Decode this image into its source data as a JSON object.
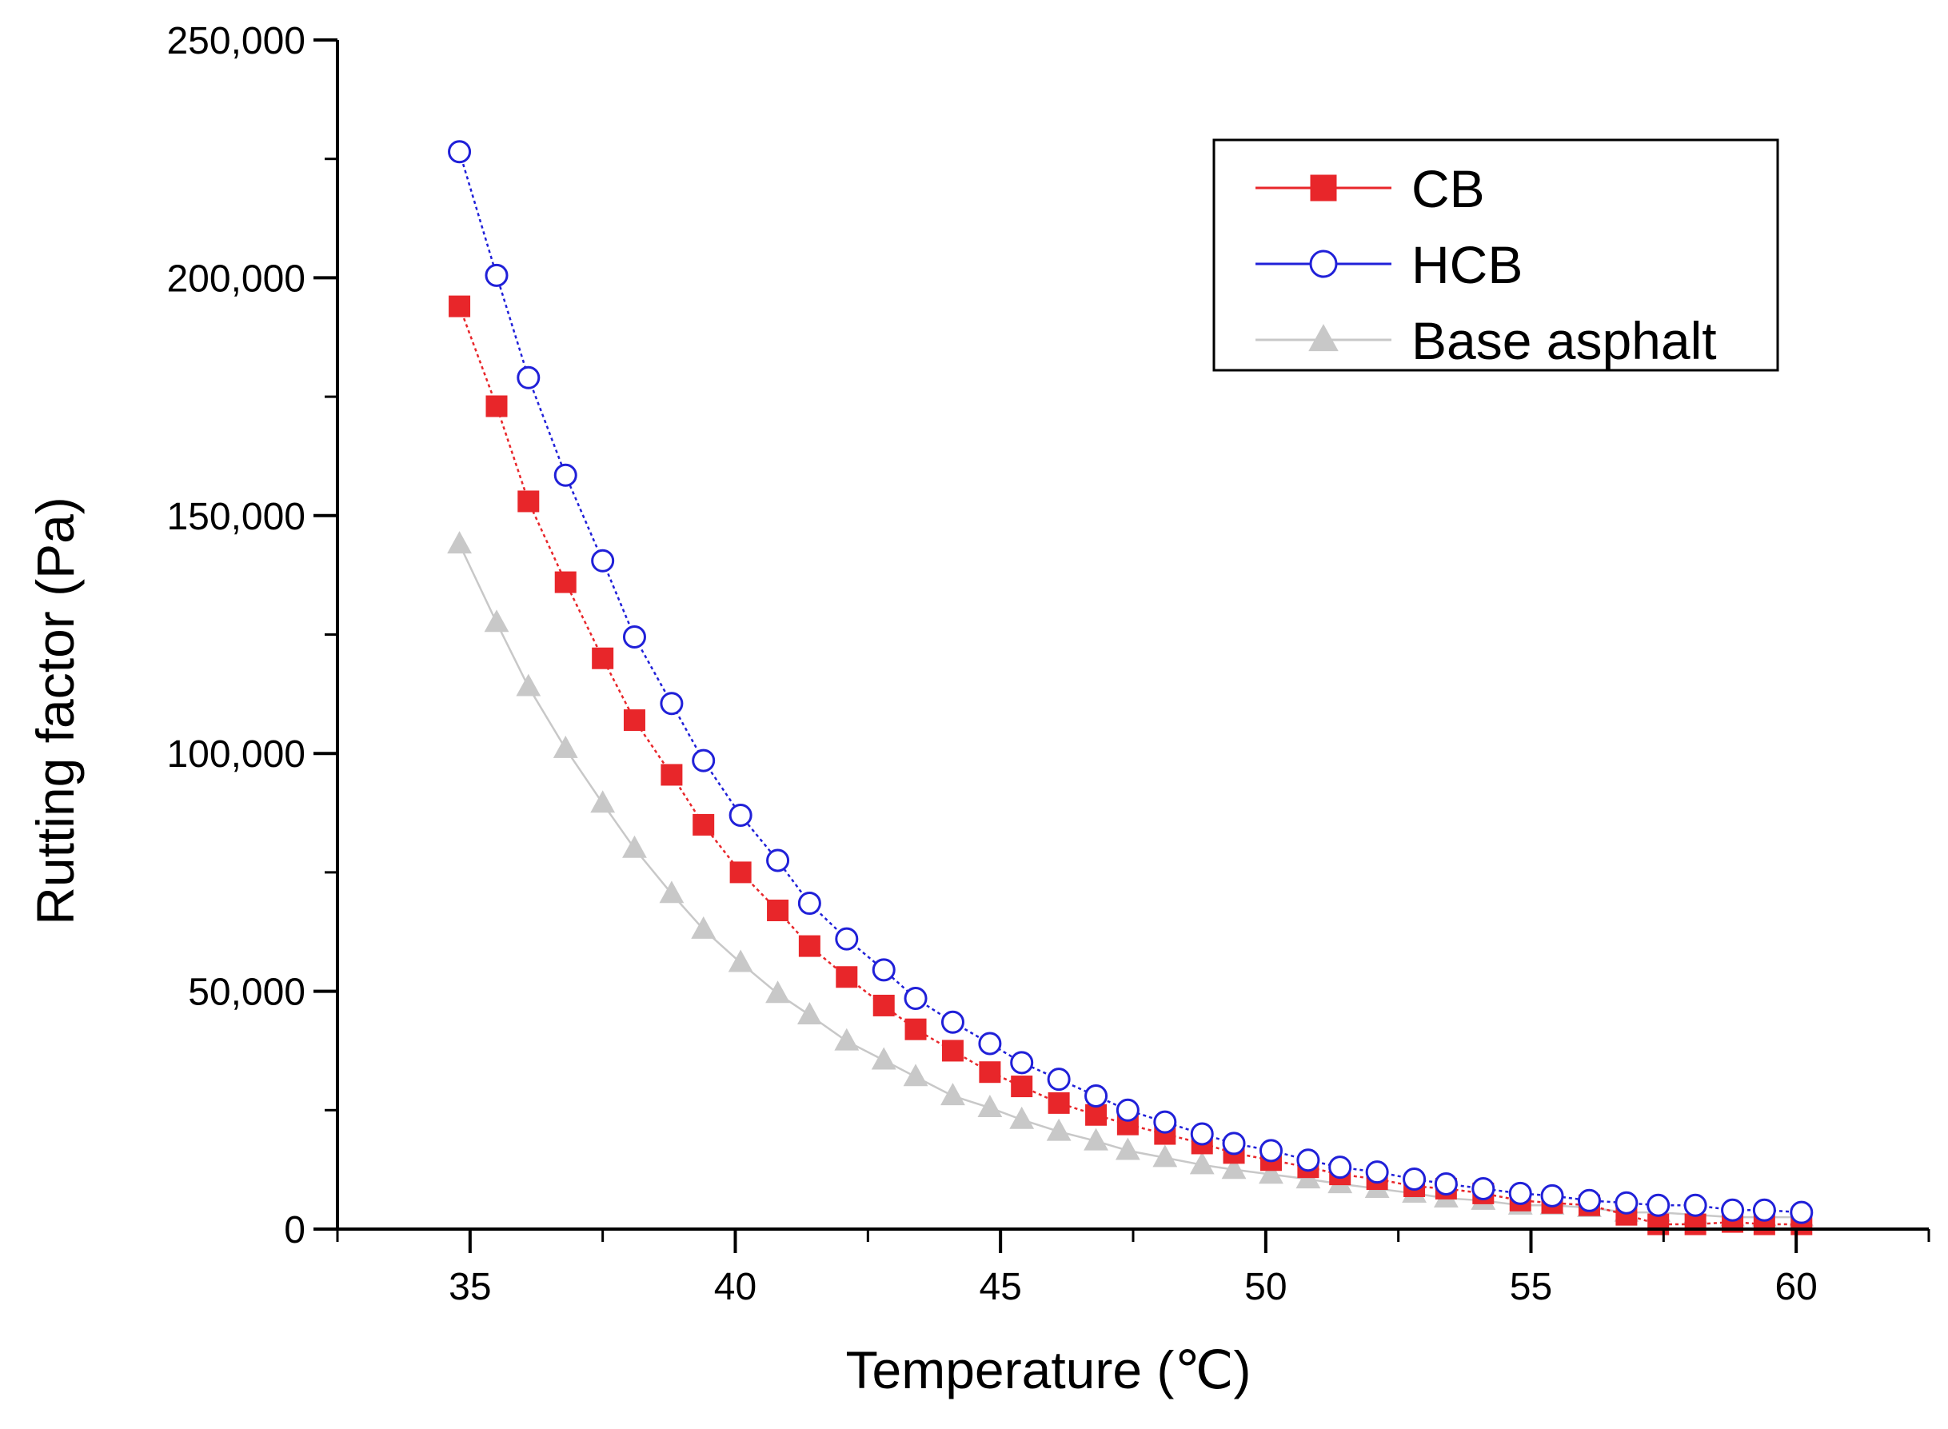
{
  "chart_data": {
    "type": "line",
    "title": "",
    "xlabel": "Temperature (℃)",
    "ylabel": "Rutting factor (Pa)",
    "xlim": [
      32.5,
      62.5
    ],
    "ylim": [
      0,
      250000
    ],
    "x_ticks": [
      35,
      40,
      45,
      50,
      55,
      60
    ],
    "x_tick_labels": [
      "35",
      "40",
      "45",
      "50",
      "55",
      "60"
    ],
    "y_ticks": [
      0,
      50000,
      100000,
      150000,
      200000,
      250000
    ],
    "y_tick_labels": [
      "0",
      "50,000",
      "100,000",
      "150,000",
      "200,000",
      "250,000"
    ],
    "grid": false,
    "legend_position": "top-right",
    "x": [
      34.8,
      35.5,
      36.1,
      36.8,
      37.5,
      38.1,
      38.8,
      39.4,
      40.1,
      40.8,
      41.4,
      42.1,
      42.8,
      43.4,
      44.1,
      44.8,
      45.4,
      46.1,
      46.8,
      47.4,
      48.1,
      48.8,
      49.4,
      50.1,
      50.8,
      51.4,
      52.1,
      52.8,
      53.4,
      54.1,
      54.8,
      55.4,
      56.1,
      56.8,
      57.4,
      58.1,
      58.8,
      59.4,
      60.1
    ],
    "series": [
      {
        "name": "CB",
        "color": "#e8262a",
        "marker": "square",
        "values": [
          194000,
          173000,
          153000,
          136000,
          120000,
          107000,
          95500,
          85000,
          75000,
          67000,
          59500,
          53000,
          47000,
          42000,
          37500,
          33000,
          30000,
          26500,
          24000,
          22000,
          20000,
          18000,
          16000,
          14500,
          13000,
          11500,
          10500,
          9000,
          8500,
          7500,
          6000,
          5500,
          5000,
          3000,
          1000,
          1000,
          1500,
          1000,
          1000
        ]
      },
      {
        "name": "HCB",
        "color": "#2020d8",
        "marker": "circle",
        "values": [
          226500,
          200500,
          179000,
          158500,
          140500,
          124500,
          110500,
          98500,
          87000,
          77500,
          68500,
          61000,
          54500,
          48500,
          43500,
          39000,
          35000,
          31500,
          28000,
          25000,
          22500,
          20000,
          18000,
          16500,
          14500,
          13000,
          12000,
          10500,
          9500,
          8500,
          7500,
          7000,
          6000,
          5500,
          5000,
          5000,
          4000,
          4000,
          3500
        ]
      },
      {
        "name": "Base asphalt",
        "color": "#c8c8c8",
        "marker": "triangle",
        "values": [
          144000,
          127500,
          114000,
          101000,
          89500,
          80000,
          70500,
          63000,
          56000,
          49500,
          45000,
          39500,
          35500,
          32000,
          28000,
          25500,
          23000,
          20500,
          18500,
          16500,
          15000,
          13500,
          12500,
          11500,
          10500,
          9500,
          8500,
          7500,
          6500,
          6000,
          5000,
          5000,
          4500,
          3500,
          3500,
          3000,
          2500,
          2500,
          2500
        ]
      }
    ]
  }
}
